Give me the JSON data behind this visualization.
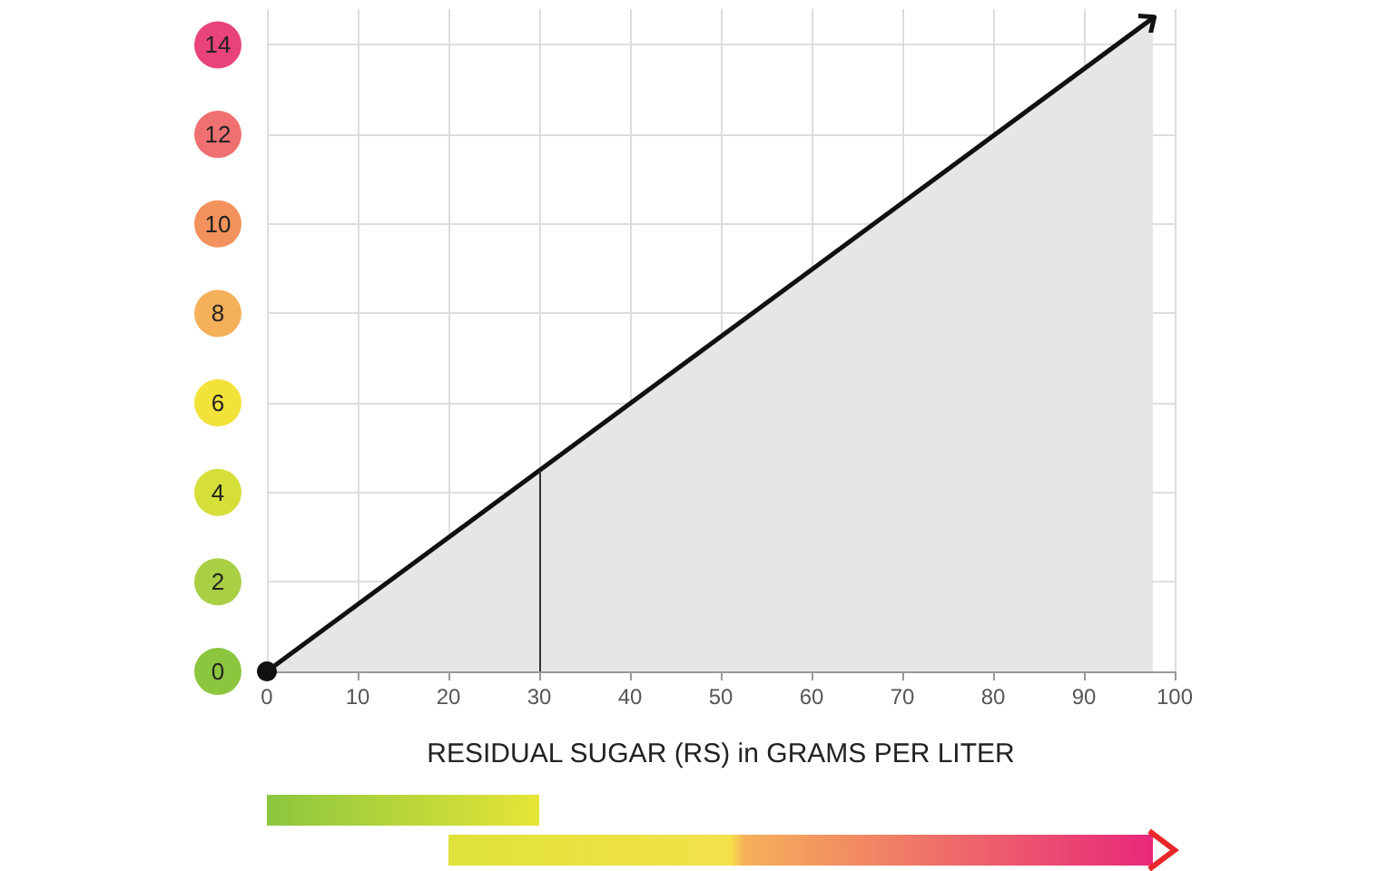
{
  "chart_data": {
    "type": "area",
    "xlabel": "RESIDUAL SUGAR (RS) in GRAMS PER LITER",
    "x": [
      0,
      97.6
    ],
    "series": [
      {
        "color": "#111111",
        "values": [
          0,
          14.6
        ]
      }
    ],
    "xlim": [
      0,
      100
    ],
    "xticks": [
      0,
      10,
      20,
      30,
      40,
      50,
      60,
      70,
      80,
      90,
      100
    ],
    "ylim": [
      0,
      14.8
    ],
    "yticks": [
      0,
      2,
      4,
      6,
      8,
      10,
      12,
      14
    ],
    "grid": true,
    "marker": "circle",
    "line_style": "solid",
    "ref_lines": [
      {
        "axis": "x",
        "value": 30,
        "color": "#333333"
      }
    ]
  }
}
